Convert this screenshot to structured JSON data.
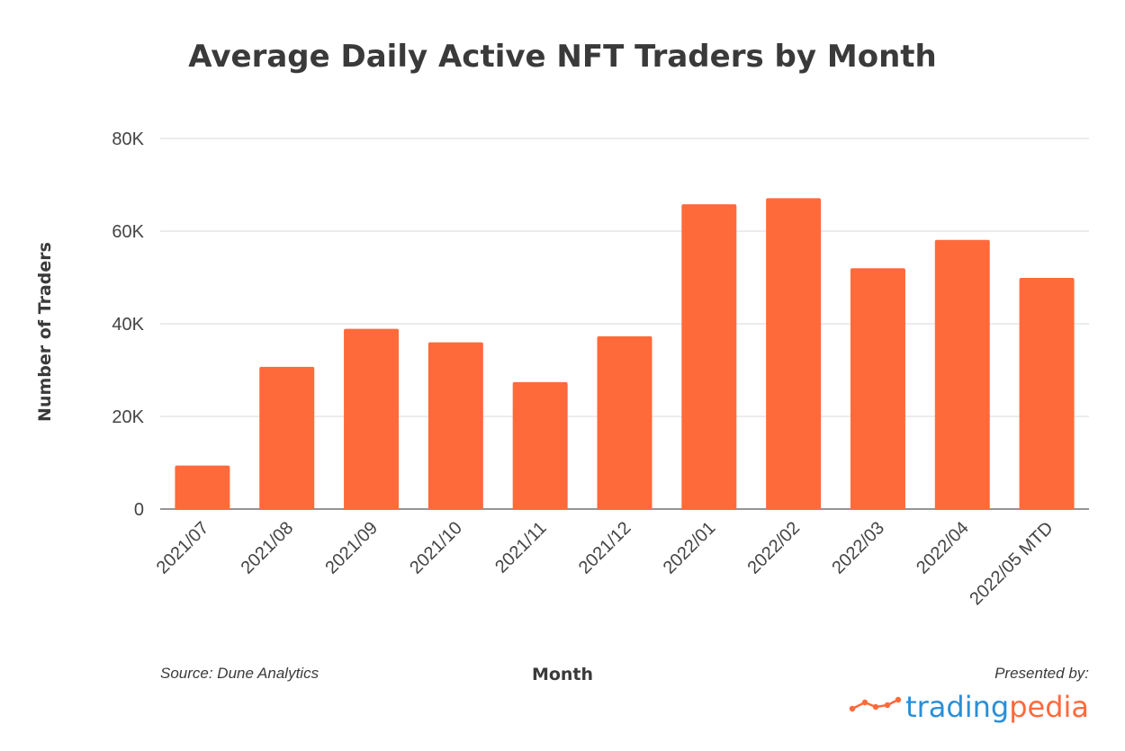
{
  "colors": {
    "bar": "#ff6a3b",
    "grid": "#d9d9d9",
    "brand_blue": "#2a8fd6",
    "brand_orange": "#ff6a3b"
  },
  "chart_data": {
    "type": "bar",
    "title": "Average Daily Active NFT Traders by Month",
    "xlabel": "Month",
    "ylabel": "Number of Traders",
    "ylim": [
      0,
      80000
    ],
    "yticks": [
      0,
      20000,
      40000,
      60000,
      80000
    ],
    "ytick_labels": [
      "0",
      "20K",
      "40K",
      "60K",
      "80K"
    ],
    "grid": true,
    "categories": [
      "2021/07",
      "2021/08",
      "2021/09",
      "2021/10",
      "2021/11",
      "2021/12",
      "2022/01",
      "2022/02",
      "2022/03",
      "2022/04",
      "2022/05 MTD"
    ],
    "values": [
      9400,
      30700,
      38900,
      36000,
      27400,
      37300,
      65800,
      67100,
      52000,
      58100,
      49900
    ]
  },
  "footer": {
    "source": "Source: Dune Analytics",
    "presented_by": "Presented by:",
    "brand_part1": "trading",
    "brand_part2": "pedia",
    "brand_icon": "line-chart-icon"
  }
}
